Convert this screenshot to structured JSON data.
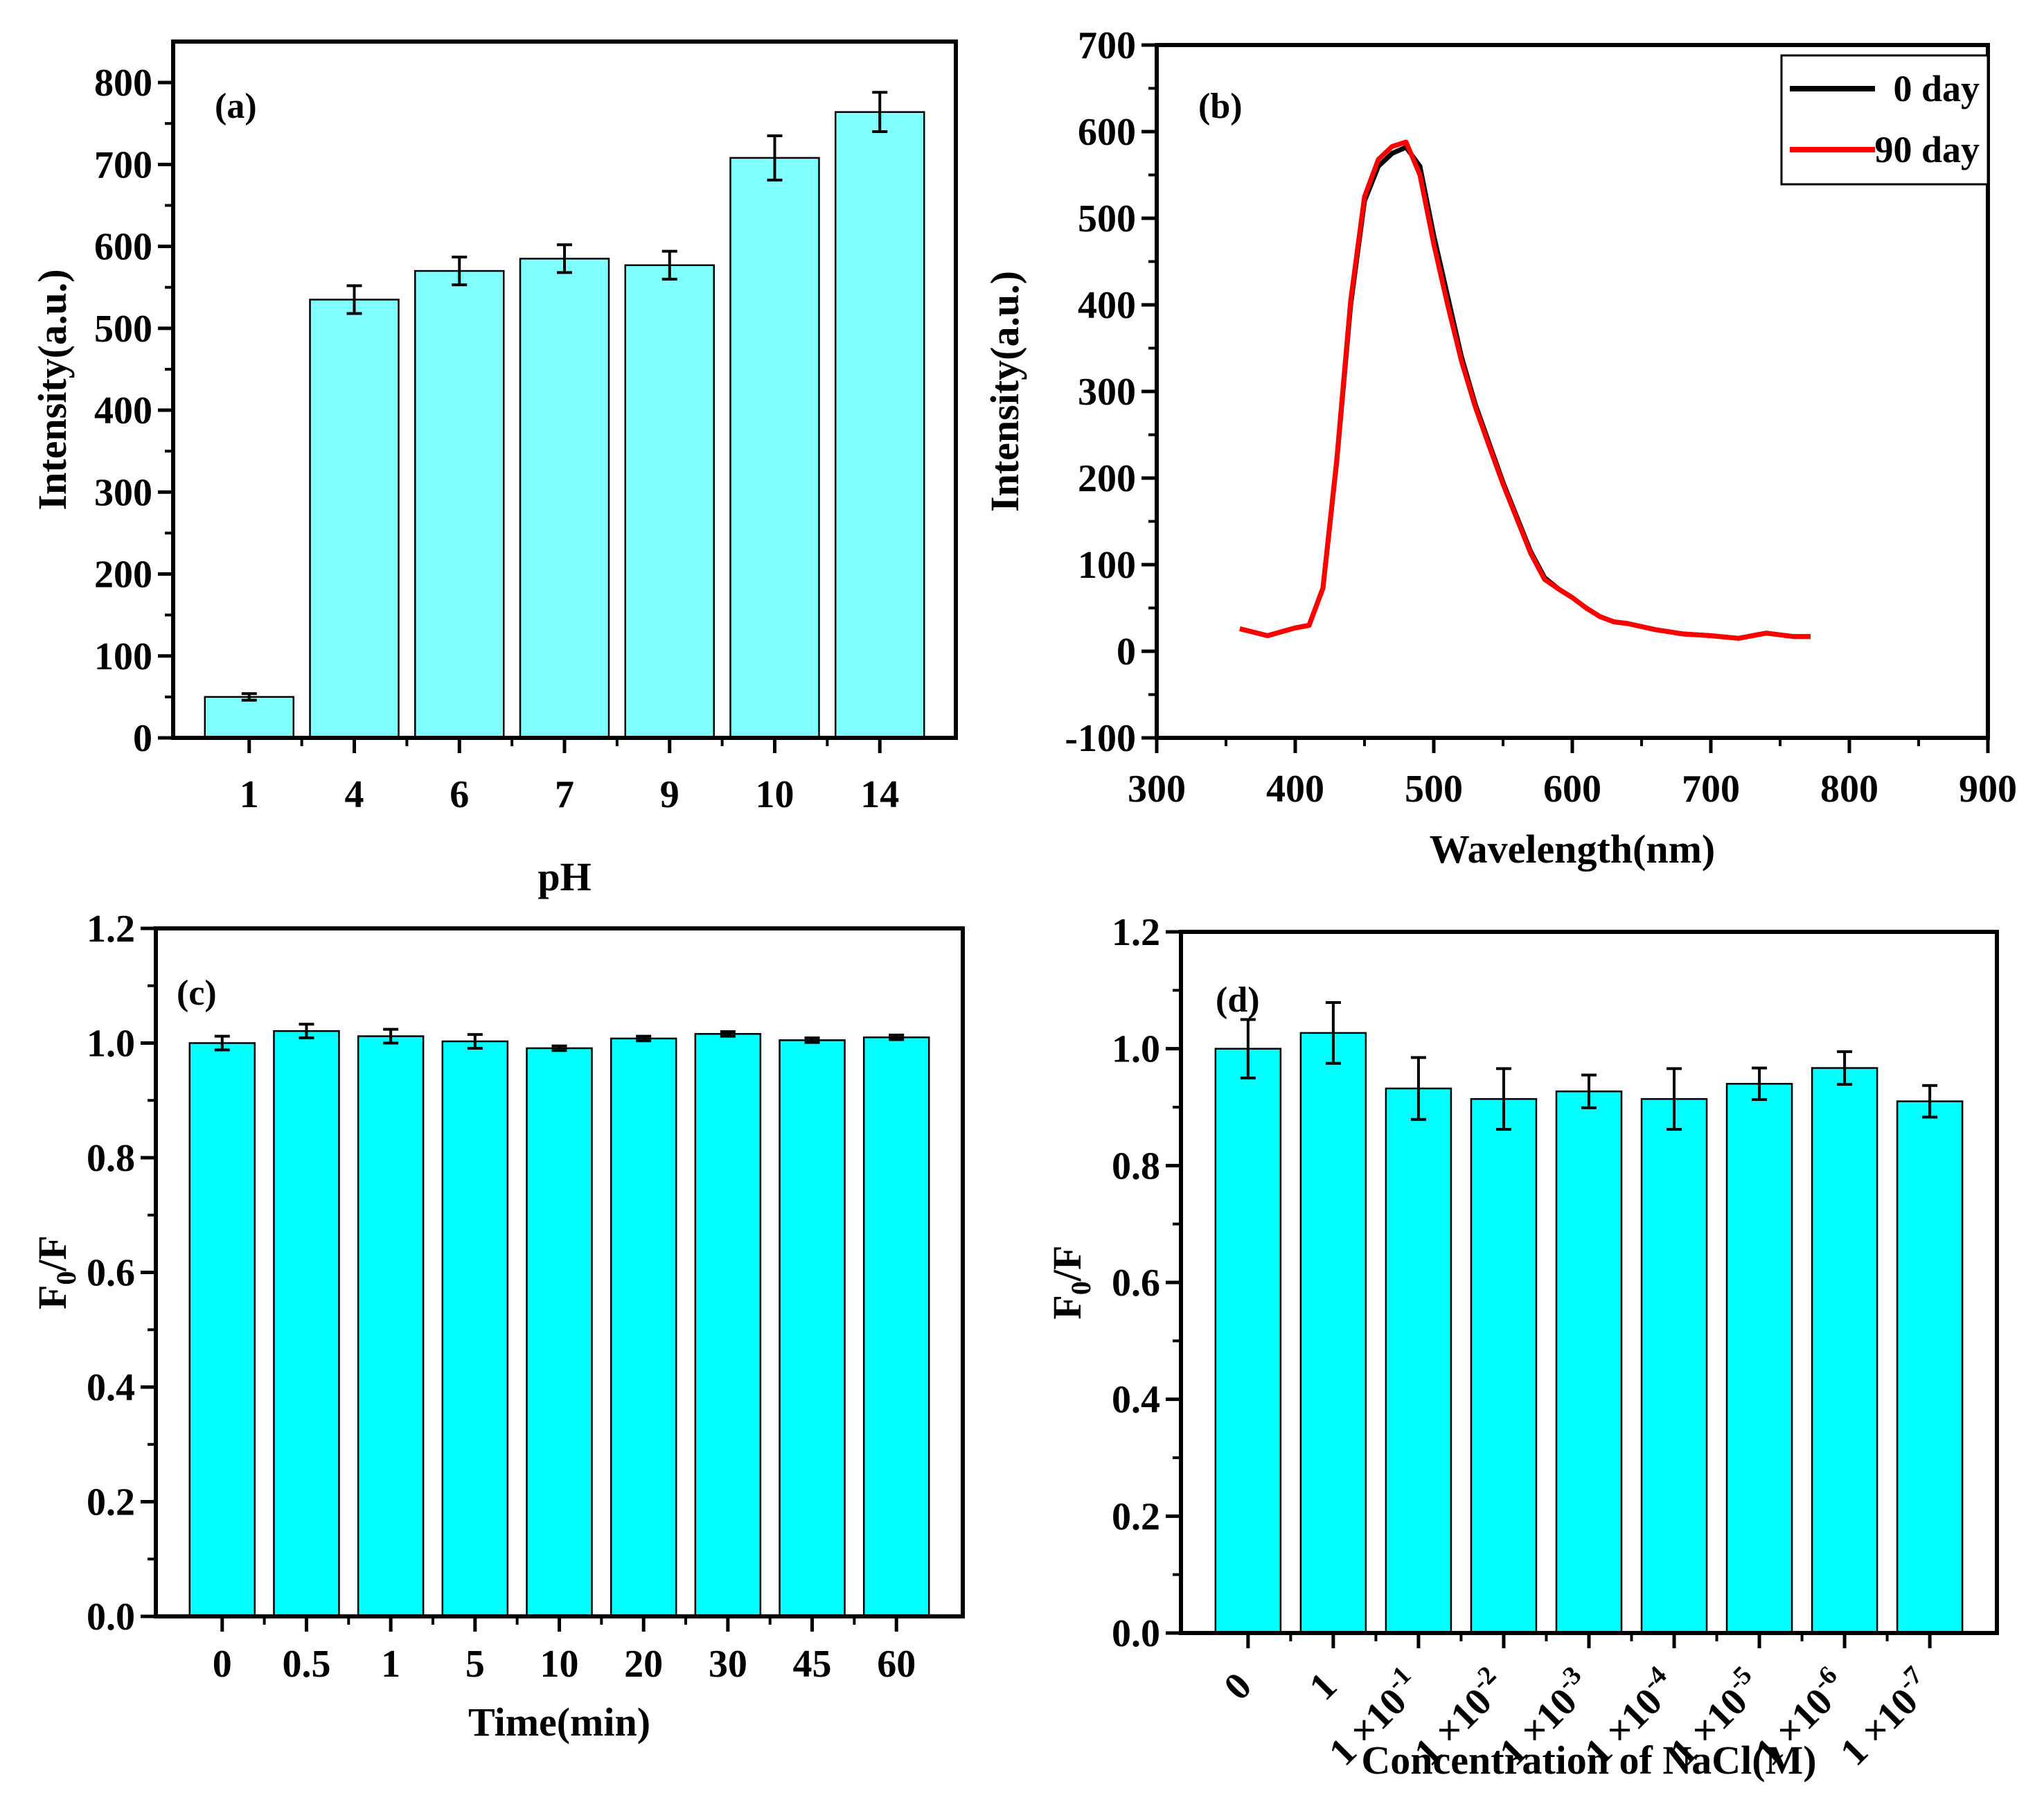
{
  "chart_data": [
    {
      "id": "a",
      "type": "bar",
      "panel_label": "(a)",
      "xlabel": "pH",
      "ylabel": "Intensity(a.u.)",
      "categories": [
        "1",
        "4",
        "6",
        "7",
        "9",
        "10",
        "14"
      ],
      "values": [
        50,
        535,
        570,
        585,
        577,
        708,
        764
      ],
      "errors": [
        4,
        17,
        17,
        17,
        17,
        27,
        24
      ],
      "ylim": [
        0,
        850
      ],
      "yticks": [
        "0",
        "100",
        "200",
        "300",
        "400",
        "500",
        "600",
        "700",
        "800"
      ],
      "bar_color": "#80FFFF"
    },
    {
      "id": "b",
      "type": "line",
      "panel_label": "(b)",
      "xlabel": "Wavelength(nm)",
      "ylabel": "Intensity(a.u.)",
      "xlim": [
        300,
        900
      ],
      "ylim": [
        -100,
        700
      ],
      "xticks": [
        "300",
        "400",
        "500",
        "600",
        "700",
        "800",
        "900"
      ],
      "yticks": [
        "-100",
        "0",
        "100",
        "200",
        "300",
        "400",
        "500",
        "600",
        "700"
      ],
      "legend_position": "top-right",
      "series": [
        {
          "name": "0 day",
          "color": "#000000",
          "x": [
            360,
            380,
            400,
            410,
            420,
            430,
            440,
            450,
            460,
            470,
            480,
            490,
            500,
            510,
            520,
            530,
            540,
            550,
            560,
            570,
            580,
            590,
            600,
            610,
            620,
            630,
            640,
            660,
            680,
            700,
            720,
            740,
            760,
            772
          ],
          "y": [
            26,
            18,
            27,
            30,
            73,
            220,
            400,
            520,
            560,
            575,
            582,
            560,
            480,
            410,
            340,
            285,
            240,
            195,
            155,
            115,
            85,
            72,
            62,
            50,
            40,
            34,
            32,
            25,
            20,
            18,
            15,
            21,
            17,
            17
          ]
        },
        {
          "name": "90 day",
          "color": "#FF0000",
          "x": [
            360,
            380,
            400,
            410,
            420,
            430,
            440,
            450,
            460,
            470,
            480,
            490,
            500,
            510,
            520,
            530,
            540,
            550,
            560,
            570,
            580,
            590,
            600,
            610,
            620,
            630,
            640,
            660,
            680,
            700,
            720,
            740,
            760,
            772
          ],
          "y": [
            26,
            18,
            27,
            30,
            73,
            222,
            405,
            525,
            568,
            583,
            588,
            550,
            470,
            400,
            335,
            282,
            237,
            193,
            153,
            113,
            83,
            72,
            62,
            50,
            40,
            34,
            32,
            25,
            20,
            18,
            15,
            21,
            17,
            17
          ]
        }
      ]
    },
    {
      "id": "c",
      "type": "bar",
      "panel_label": "(c)",
      "xlabel": "Time(min)",
      "ylabel": "F0/F",
      "ylabel_main": "F",
      "ylabel_sub": "0",
      "ylabel_tail": "/F",
      "categories": [
        "0",
        "0.5",
        "1",
        "5",
        "10",
        "20",
        "30",
        "45",
        "60"
      ],
      "values": [
        1.0,
        1.021,
        1.012,
        1.003,
        0.991,
        1.008,
        1.016,
        1.005,
        1.01
      ],
      "errors": [
        0.012,
        0.012,
        0.012,
        0.012,
        0.004,
        0.004,
        0.004,
        0.004,
        0.004
      ],
      "ylim": [
        0,
        1.2
      ],
      "yticks": [
        "0.0",
        "0.2",
        "0.4",
        "0.6",
        "0.8",
        "1.0",
        "1.2"
      ],
      "bar_color": "#00FFFF"
    },
    {
      "id": "d",
      "type": "bar",
      "panel_label": "(d)",
      "xlabel": "Concentration of NaCl(M)",
      "ylabel": "F0/F",
      "ylabel_main": "F",
      "ylabel_sub": "0",
      "ylabel_tail": "/F",
      "categories": [
        {
          "base": "0",
          "exp": ""
        },
        {
          "base": "1",
          "exp": ""
        },
        {
          "base": "1 ×10",
          "exp": "-1"
        },
        {
          "base": "1 ×10",
          "exp": "-2"
        },
        {
          "base": "1 ×10",
          "exp": "-3"
        },
        {
          "base": "1 ×10",
          "exp": "-4"
        },
        {
          "base": "1 ×10",
          "exp": "-5"
        },
        {
          "base": "1 ×10",
          "exp": "-6"
        },
        {
          "base": "1 ×10",
          "exp": "-7"
        }
      ],
      "values": [
        1.0,
        1.027,
        0.932,
        0.914,
        0.927,
        0.914,
        0.94,
        0.967,
        0.91
      ],
      "errors": [
        0.05,
        0.052,
        0.053,
        0.052,
        0.028,
        0.052,
        0.027,
        0.028,
        0.027
      ],
      "ylim": [
        0,
        1.2
      ],
      "yticks": [
        "0.0",
        "0.2",
        "0.4",
        "0.6",
        "0.8",
        "1.0",
        "1.2"
      ],
      "bar_color": "#00FFFF"
    }
  ]
}
